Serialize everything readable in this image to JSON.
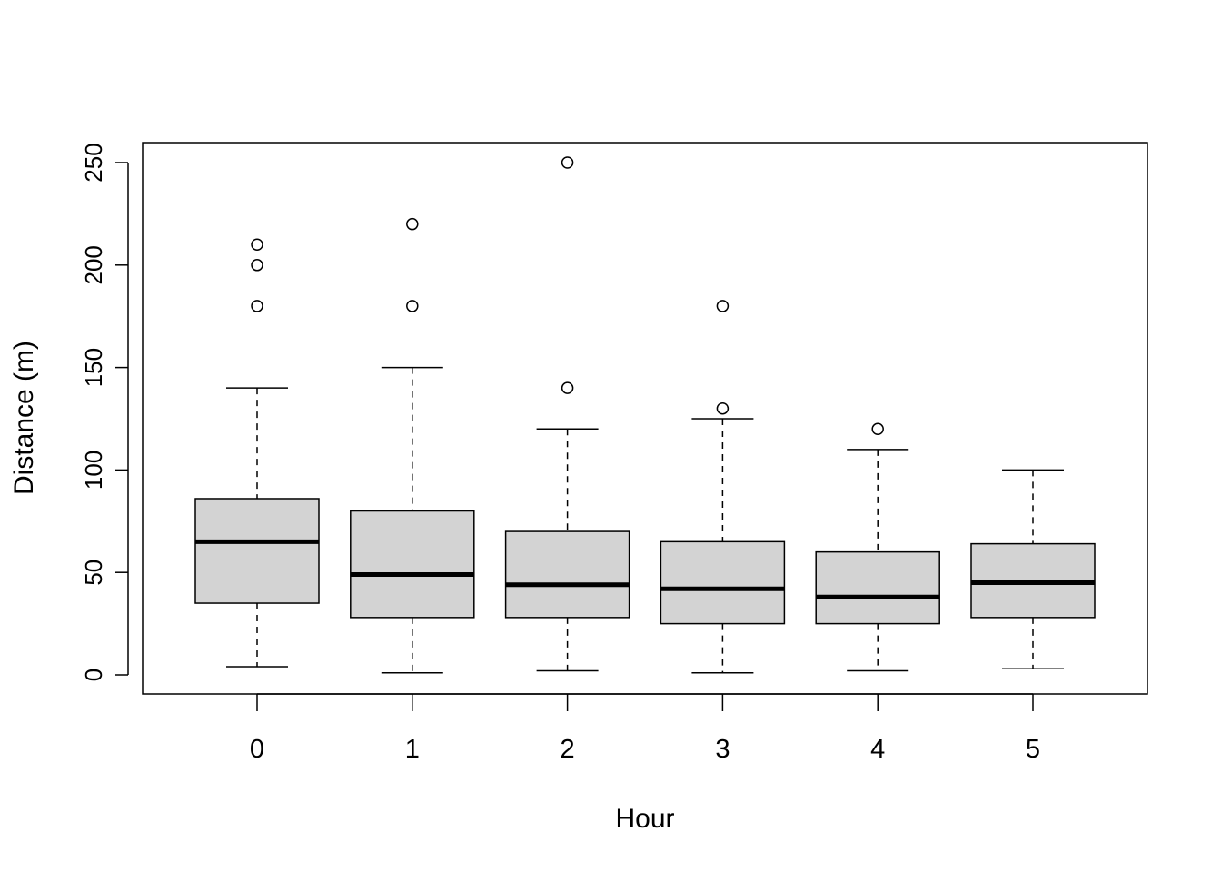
{
  "chart_data": {
    "type": "boxplot",
    "title": "",
    "xlabel": "Hour",
    "ylabel": "Distance (m)",
    "ylim": [
      -10,
      260
    ],
    "yticks": [
      0,
      50,
      100,
      150,
      200,
      250
    ],
    "categories": [
      "0",
      "1",
      "2",
      "3",
      "4",
      "5"
    ],
    "box_fill": "#d3d3d3",
    "grid": false,
    "boxes": [
      {
        "lower_whisker": 4,
        "q1": 35,
        "median": 65,
        "q3": 86,
        "upper_whisker": 140,
        "outliers": [
          180,
          200,
          210
        ]
      },
      {
        "lower_whisker": 1,
        "q1": 28,
        "median": 49,
        "q3": 80,
        "upper_whisker": 150,
        "outliers": [
          180,
          220
        ]
      },
      {
        "lower_whisker": 2,
        "q1": 28,
        "median": 44,
        "q3": 70,
        "upper_whisker": 120,
        "outliers": [
          140,
          250
        ]
      },
      {
        "lower_whisker": 1,
        "q1": 25,
        "median": 42,
        "q3": 65,
        "upper_whisker": 125,
        "outliers": [
          130,
          180
        ]
      },
      {
        "lower_whisker": 2,
        "q1": 25,
        "median": 38,
        "q3": 60,
        "upper_whisker": 110,
        "outliers": [
          120
        ]
      },
      {
        "lower_whisker": 3,
        "q1": 28,
        "median": 45,
        "q3": 64,
        "upper_whisker": 100,
        "outliers": []
      }
    ]
  }
}
